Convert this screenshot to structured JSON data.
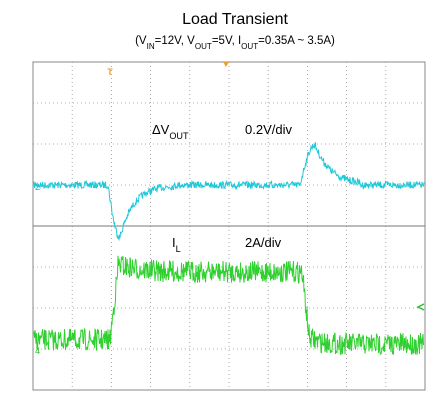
{
  "title": "Load Transient",
  "subtitle": [
    "(V",
    "IN",
    "=12V, V",
    "OUT",
    "=5V, I",
    "OUT",
    "=0.35A ~ 3.5A)"
  ],
  "labels": {
    "voltage_symbol": [
      "ΔV",
      "OUT"
    ],
    "voltage_scale": "0.2V/div",
    "current_symbol": [
      "I",
      "L"
    ],
    "current_scale": "2A/div"
  },
  "markers": {
    "trigger": "T",
    "channel2": "2",
    "channel4": "4"
  }
}
